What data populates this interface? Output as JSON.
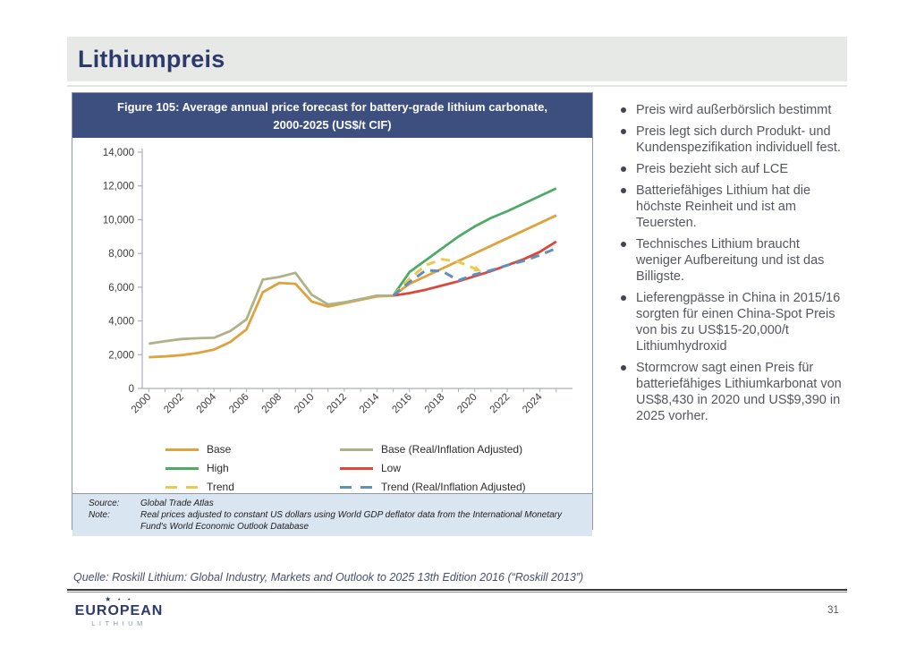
{
  "slide": {
    "title": "Lithiumpreis",
    "page_number": "31",
    "source_line": "Quelle: Roskill Lithium: Global Industry, Markets and Outlook to 2025 13th Edition 2016 (“Roskill 2013”)"
  },
  "logo": {
    "stars": "★ ⋆ ⋆",
    "line1": "EUROPEAN",
    "line2": "LITHIUM"
  },
  "figure": {
    "title_line1": "Figure 105: Average annual price forecast for battery-grade lithium carbonate,",
    "title_line2": "2000-2025 (US$/t CIF)",
    "source_label": "Source:",
    "source_value": "Global Trade Atlas",
    "note_label": "Note:",
    "note_value": "Real prices adjusted to constant US dollars using World GDP deflator data from the International Monetary Fund's World Economic Outlook Database"
  },
  "bullets": [
    "Preis wird außerbörslich bestimmt",
    "Preis legt sich durch Produkt- und Kundenspezifikation individuell fest.",
    "Preis bezieht sich auf LCE",
    "Batteriefähiges Lithium hat die höchste Reinheit und ist am Teuersten.",
    "Technisches Lithium braucht weniger Aufbereitung und ist das Billigste.",
    "Lieferengpässe in China in 2015/16 sorgten für einen China-Spot Preis von bis zu US$15-20,000/t Lithiumhydroxid",
    "Stormcrow sagt einen Preis für batteriefähiges Lithiumkarbonat von US$8,430 in 2020 und US$9,390 in 2025 vorher."
  ],
  "chart_data": {
    "type": "line",
    "title": "Figure 105: Average annual price forecast for battery-grade lithium carbonate, 2000-2025 (US$/t CIF)",
    "xlabel": "",
    "ylabel": "US$/t CIF",
    "ylim": [
      0,
      14000
    ],
    "yticks": [
      0,
      2000,
      4000,
      6000,
      8000,
      10000,
      12000,
      14000
    ],
    "xticks": [
      2000,
      2002,
      2004,
      2006,
      2008,
      2010,
      2012,
      2014,
      2016,
      2018,
      2020,
      2022,
      2024
    ],
    "x_range": [
      2000,
      2025
    ],
    "grid": false,
    "legend_position": "bottom",
    "series": [
      {
        "name": "Base",
        "color": "#DFA23E",
        "dash": false,
        "points": [
          [
            2000,
            1850
          ],
          [
            2001,
            1900
          ],
          [
            2002,
            1975
          ],
          [
            2003,
            2100
          ],
          [
            2004,
            2300
          ],
          [
            2005,
            2750
          ],
          [
            2006,
            3500
          ],
          [
            2007,
            5700
          ],
          [
            2008,
            6250
          ],
          [
            2009,
            6200
          ],
          [
            2010,
            5150
          ],
          [
            2011,
            4850
          ],
          [
            2012,
            5050
          ],
          [
            2013,
            5250
          ],
          [
            2014,
            5450
          ],
          [
            2015,
            5500
          ],
          [
            2016,
            6200
          ],
          [
            2017,
            6650
          ],
          [
            2018,
            7100
          ],
          [
            2019,
            7550
          ],
          [
            2020,
            8000
          ],
          [
            2021,
            8450
          ],
          [
            2022,
            8900
          ],
          [
            2023,
            9350
          ],
          [
            2024,
            9800
          ],
          [
            2025,
            10250
          ]
        ]
      },
      {
        "name": "Base (Real/Inflation Adjusted)",
        "color": "#AFB286",
        "dash": false,
        "points": [
          [
            2000,
            2650
          ],
          [
            2001,
            2800
          ],
          [
            2002,
            2925
          ],
          [
            2003,
            2975
          ],
          [
            2004,
            3000
          ],
          [
            2005,
            3400
          ],
          [
            2006,
            4100
          ],
          [
            2007,
            6450
          ],
          [
            2008,
            6600
          ],
          [
            2009,
            6850
          ],
          [
            2010,
            5550
          ],
          [
            2011,
            4975
          ],
          [
            2012,
            5100
          ],
          [
            2013,
            5300
          ],
          [
            2014,
            5500
          ],
          [
            2015,
            5500
          ]
        ]
      },
      {
        "name": "High",
        "color": "#4FAA68",
        "dash": false,
        "points": [
          [
            2015,
            5500
          ],
          [
            2016,
            6900
          ],
          [
            2017,
            7600
          ],
          [
            2018,
            8300
          ],
          [
            2019,
            9000
          ],
          [
            2020,
            9600
          ],
          [
            2021,
            10100
          ],
          [
            2022,
            10500
          ],
          [
            2023,
            10950
          ],
          [
            2024,
            11400
          ],
          [
            2025,
            11850
          ]
        ]
      },
      {
        "name": "Low",
        "color": "#D9483B",
        "dash": false,
        "points": [
          [
            2015,
            5500
          ],
          [
            2016,
            5650
          ],
          [
            2017,
            5850
          ],
          [
            2018,
            6100
          ],
          [
            2019,
            6350
          ],
          [
            2020,
            6650
          ],
          [
            2021,
            6950
          ],
          [
            2022,
            7300
          ],
          [
            2023,
            7650
          ],
          [
            2024,
            8100
          ],
          [
            2025,
            8700
          ]
        ]
      },
      {
        "name": "Trend",
        "color": "#EDC84A",
        "dash": true,
        "arrow_end": true,
        "points": [
          [
            2015,
            5500
          ],
          [
            2016,
            6500
          ],
          [
            2017,
            7300
          ],
          [
            2018,
            7650
          ],
          [
            2019,
            7500
          ],
          [
            2020,
            7100
          ]
        ]
      },
      {
        "name": "Trend (Real/Inflation Adjusted)",
        "color": "#5E8FBF",
        "dash": true,
        "points": [
          [
            2015,
            5500
          ],
          [
            2016,
            6300
          ],
          [
            2017,
            7000
          ],
          [
            2018,
            6950
          ],
          [
            2019,
            6400
          ],
          [
            2020,
            6750
          ],
          [
            2021,
            7000
          ],
          [
            2022,
            7300
          ],
          [
            2023,
            7550
          ],
          [
            2024,
            7900
          ],
          [
            2025,
            8300
          ]
        ]
      }
    ],
    "legend": [
      {
        "label": "Base",
        "color": "#DFA23E",
        "dash": false
      },
      {
        "label": "Base (Real/Inflation Adjusted)",
        "color": "#AFB286",
        "dash": false
      },
      {
        "label": "High",
        "color": "#4FAA68",
        "dash": false
      },
      {
        "label": "Low",
        "color": "#D9483B",
        "dash": false
      },
      {
        "label": "Trend",
        "color": "#EDC84A",
        "dash": true
      },
      {
        "label": "Trend (Real/Inflation Adjusted)",
        "color": "#5E8FBF",
        "dash": true
      }
    ]
  }
}
